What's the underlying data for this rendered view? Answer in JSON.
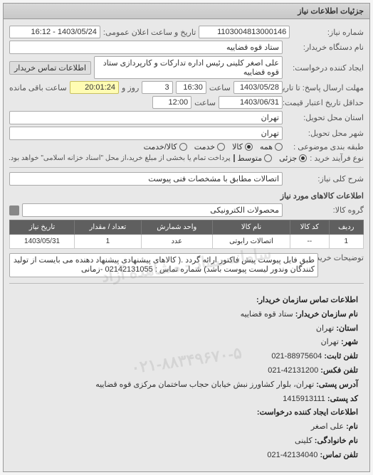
{
  "panel_title": "جزئیات اطلاعات نیاز",
  "header": {
    "need_no_label": "شماره نیاز:",
    "need_no": "1103004813000146",
    "announce_label": "تاریخ و ساعت اعلان عمومی:",
    "announce_value": "1403/05/24 - 16:12",
    "buyer_org_label": "نام دستگاه خریدار:",
    "buyer_org": "ستاد قوه قضاییه",
    "requester_label": "ایجاد کننده درخواست:",
    "requester": "علی اصغر کلینی رئیس اداره تدارکات و کارپردازی ستاد قوه قضاییه",
    "contact_btn": "اطلاعات تماس خریدار"
  },
  "deadlines": {
    "resp_deadline_label": "مهلت ارسال پاسخ: تا تاریخ:",
    "resp_date": "1403/05/28",
    "time_label": "ساعت",
    "resp_time": "16:30",
    "days_label": "روز و",
    "days_value": "3",
    "remain_time": "20:01:24",
    "remain_label": "ساعت باقی مانده",
    "valid_until_label": "حداقل تاریخ اعتبار قیمت: تا تاریخ:",
    "valid_date": "1403/06/31",
    "valid_time": "12:00"
  },
  "location": {
    "province_label": "استان محل تحویل:",
    "province": "تهران",
    "city_label": "شهر محل تحویل:",
    "city": "تهران"
  },
  "classification": {
    "budget_label": "طبقه بندی موضوعی :",
    "opt_all": "همه",
    "opt_goods": "کالا",
    "opt_service": "خدمت",
    "opt_goods_service": "کالا/خدمت",
    "process_label": "نوع فرآیند خرید :",
    "opt_low": "جزئی",
    "opt_mid": "متوسط",
    "partial_pay_text": "پرداخت تمام یا بخشی از مبلغ خرید،از محل \"اسناد خزانه اسلامی\" خواهد بود."
  },
  "desc": {
    "label": "شرح کلی نیاز:",
    "value": "اتصالات مطابق با مشخصات فنی پیوست"
  },
  "goods_section": {
    "title": "اطلاعات کالاهای مورد نیاز",
    "group_label": "گروه کالا:",
    "group_value": "محصولات الکترونیکی",
    "columns": [
      "ردیف",
      "کد کالا",
      "نام کالا",
      "واحد شمارش",
      "تعداد / مقدار",
      "تاریخ نیاز"
    ],
    "rows": [
      [
        "1",
        "--",
        "اتصالات رابوتی",
        "عدد",
        "1",
        "1403/05/31"
      ]
    ]
  },
  "buyer_note": {
    "label": "توضیحات خریدار:",
    "text": "طبق فایل پیوست پیش فاکتور ارائه گردد .( کالاهای پیشنهادی پیشنهاد دهنده می بایست از تولید کنندگان وندور لیست پیوست باشد) شماره تماس : 02142131055 -زمانی"
  },
  "contact": {
    "title": "اطلاعات تماس سازمان خریدار:",
    "org_label": "نام سازمان خریدار:",
    "org": "ستاد قوه قضاییه",
    "province_label": "استان:",
    "province": "تهران",
    "city_label": "شهر:",
    "city": "تهران",
    "phone_label": "تلفن ثابت:",
    "phone": "88975604-021",
    "fax_label": "تلفن فکس:",
    "fax": "42131200-021",
    "address_label": "آدرس پستی:",
    "address": "تهران، بلوار کشاورز نبش خیابان حجاب ساختمان مرکزی قوه قضاییه",
    "postal_label": "کد پستی:",
    "postal": "1415913111",
    "req_creator_title": "اطلاعات ایجاد کننده درخواست:",
    "name_label": "نام:",
    "name": "علی اصغر",
    "lastname_label": "نام خانوادگی:",
    "lastname": "کلینی",
    "contact_phone_label": "تلفن تماس:",
    "contact_phone": "42134040-021"
  },
  "watermark": "سامانه ستاد - مشاهده آزاد",
  "watermark2": "۰۲۱-۸۸۳۴۹۶۷۰-۵",
  "colors": {
    "panel_bg": "#e8e8e8",
    "header_grad_from": "#d8d8d8",
    "header_grad_to": "#c8c8c8",
    "field_bg": "#ffffff",
    "field_yellow": "#fffcb3",
    "table_header_bg": "#5f5f5f",
    "table_header_fg": "#ffffff",
    "border": "#999999"
  }
}
